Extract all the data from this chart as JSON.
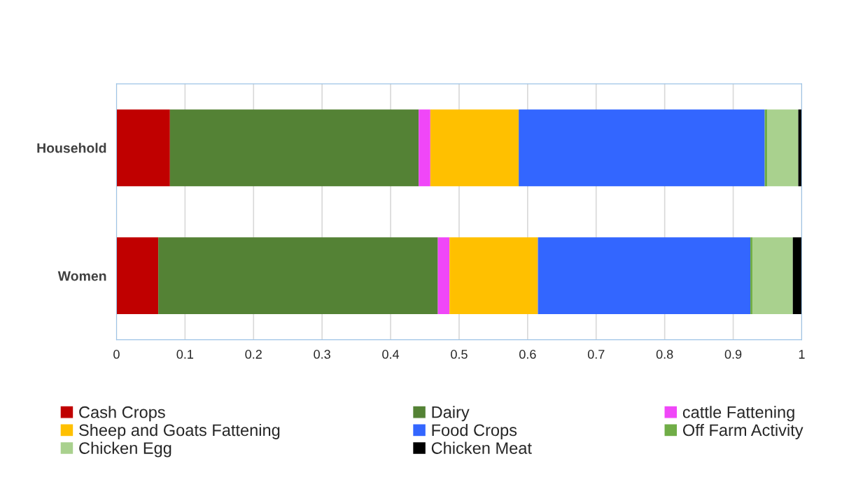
{
  "chart_data": {
    "type": "bar",
    "orientation": "horizontal",
    "stacked": true,
    "categories": [
      "Household",
      "Women"
    ],
    "series": [
      {
        "name": "Cash Crops",
        "color": "#c00000",
        "values": [
          0.078,
          0.061
        ]
      },
      {
        "name": "Dairy",
        "color": "#548235",
        "values": [
          0.363,
          0.408
        ]
      },
      {
        "name": "cattle Fattening",
        "color": "#f047f8",
        "values": [
          0.017,
          0.017
        ]
      },
      {
        "name": "Sheep and Goats Fattening",
        "color": "#ffc000",
        "values": [
          0.129,
          0.129
        ]
      },
      {
        "name": "Food Crops",
        "color": "#3366ff",
        "values": [
          0.359,
          0.31
        ]
      },
      {
        "name": "Off Farm Activity",
        "color": "#70ad47",
        "values": [
          0.004,
          0.003
        ]
      },
      {
        "name": "Chicken Egg",
        "color": "#a9d18e",
        "values": [
          0.045,
          0.059
        ]
      },
      {
        "name": "Chicken Meat",
        "color": "#000000",
        "values": [
          0.005,
          0.013
        ]
      }
    ],
    "xlim": [
      0,
      1
    ],
    "xticks": [
      0,
      0.1,
      0.2,
      0.3,
      0.4,
      0.5,
      0.6,
      0.7,
      0.8,
      0.9,
      1
    ],
    "grid": "x",
    "legend": "bottom"
  }
}
